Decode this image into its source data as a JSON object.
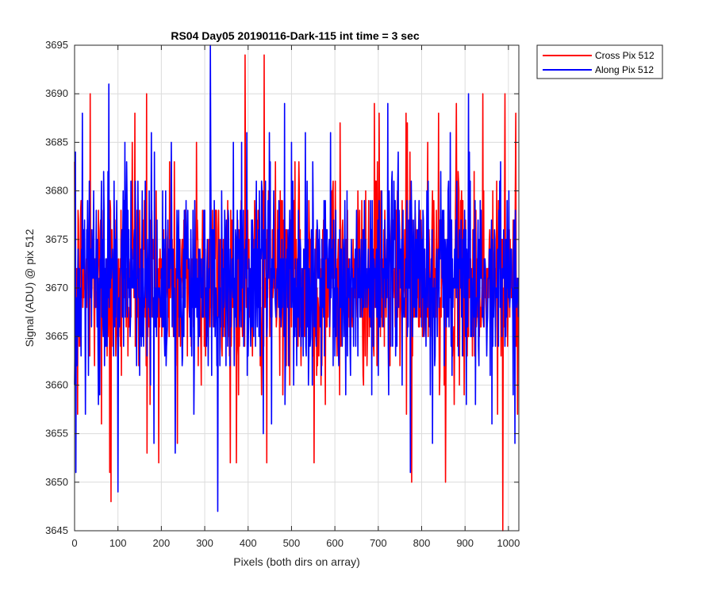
{
  "chart_data": {
    "type": "line",
    "title": "RS04 Day05 20190116-Dark-115 int time = 3 sec",
    "xlabel": "Pixels (both dirs on array)",
    "ylabel": "Signal (ADU) @ pix 512",
    "xlim": [
      0,
      1024
    ],
    "ylim": [
      3645,
      3695
    ],
    "xticks": [
      0,
      100,
      200,
      300,
      400,
      500,
      600,
      700,
      800,
      900,
      1000
    ],
    "yticks": [
      3645,
      3650,
      3655,
      3660,
      3665,
      3670,
      3675,
      3680,
      3685,
      3690,
      3695
    ],
    "grid": true,
    "legend_location": "outside-top-right",
    "noise_profile": {
      "n_points": 1024,
      "mean": 3671,
      "spread": 5
    },
    "series": [
      {
        "name": "Cross Pix 512",
        "color": "#ff0000",
        "key_points": [
          {
            "x": 0,
            "y": 3683
          },
          {
            "x": 7,
            "y": 3657
          },
          {
            "x": 36,
            "y": 3690
          },
          {
            "x": 62,
            "y": 3656
          },
          {
            "x": 81,
            "y": 3651
          },
          {
            "x": 84,
            "y": 3648
          },
          {
            "x": 133,
            "y": 3685
          },
          {
            "x": 139,
            "y": 3688
          },
          {
            "x": 166,
            "y": 3690
          },
          {
            "x": 167,
            "y": 3653
          },
          {
            "x": 219,
            "y": 3683
          },
          {
            "x": 237,
            "y": 3654
          },
          {
            "x": 281,
            "y": 3685
          },
          {
            "x": 373,
            "y": 3652
          },
          {
            "x": 393,
            "y": 3694
          },
          {
            "x": 437,
            "y": 3694
          },
          {
            "x": 443,
            "y": 3652
          },
          {
            "x": 552,
            "y": 3652
          },
          {
            "x": 612,
            "y": 3687
          },
          {
            "x": 691,
            "y": 3689
          },
          {
            "x": 702,
            "y": 3688
          },
          {
            "x": 764,
            "y": 3688
          },
          {
            "x": 767,
            "y": 3687
          },
          {
            "x": 777,
            "y": 3650
          },
          {
            "x": 839,
            "y": 3688
          },
          {
            "x": 855,
            "y": 3650
          },
          {
            "x": 880,
            "y": 3689
          },
          {
            "x": 941,
            "y": 3690
          },
          {
            "x": 975,
            "y": 3657
          },
          {
            "x": 987,
            "y": 3645
          },
          {
            "x": 992,
            "y": 3690
          },
          {
            "x": 1017,
            "y": 3688
          }
        ]
      },
      {
        "name": "Along Pix 512",
        "color": "#0000ff",
        "key_points": [
          {
            "x": 3,
            "y": 3651
          },
          {
            "x": 18,
            "y": 3688
          },
          {
            "x": 79,
            "y": 3691
          },
          {
            "x": 100,
            "y": 3649
          },
          {
            "x": 177,
            "y": 3686
          },
          {
            "x": 232,
            "y": 3653
          },
          {
            "x": 313,
            "y": 3695
          },
          {
            "x": 330,
            "y": 3647
          },
          {
            "x": 385,
            "y": 3685
          },
          {
            "x": 484,
            "y": 3689
          },
          {
            "x": 590,
            "y": 3686
          },
          {
            "x": 722,
            "y": 3689
          },
          {
            "x": 774,
            "y": 3651
          },
          {
            "x": 825,
            "y": 3654
          },
          {
            "x": 866,
            "y": 3686
          },
          {
            "x": 908,
            "y": 3690
          },
          {
            "x": 962,
            "y": 3656
          },
          {
            "x": 1015,
            "y": 3654
          }
        ]
      }
    ]
  }
}
